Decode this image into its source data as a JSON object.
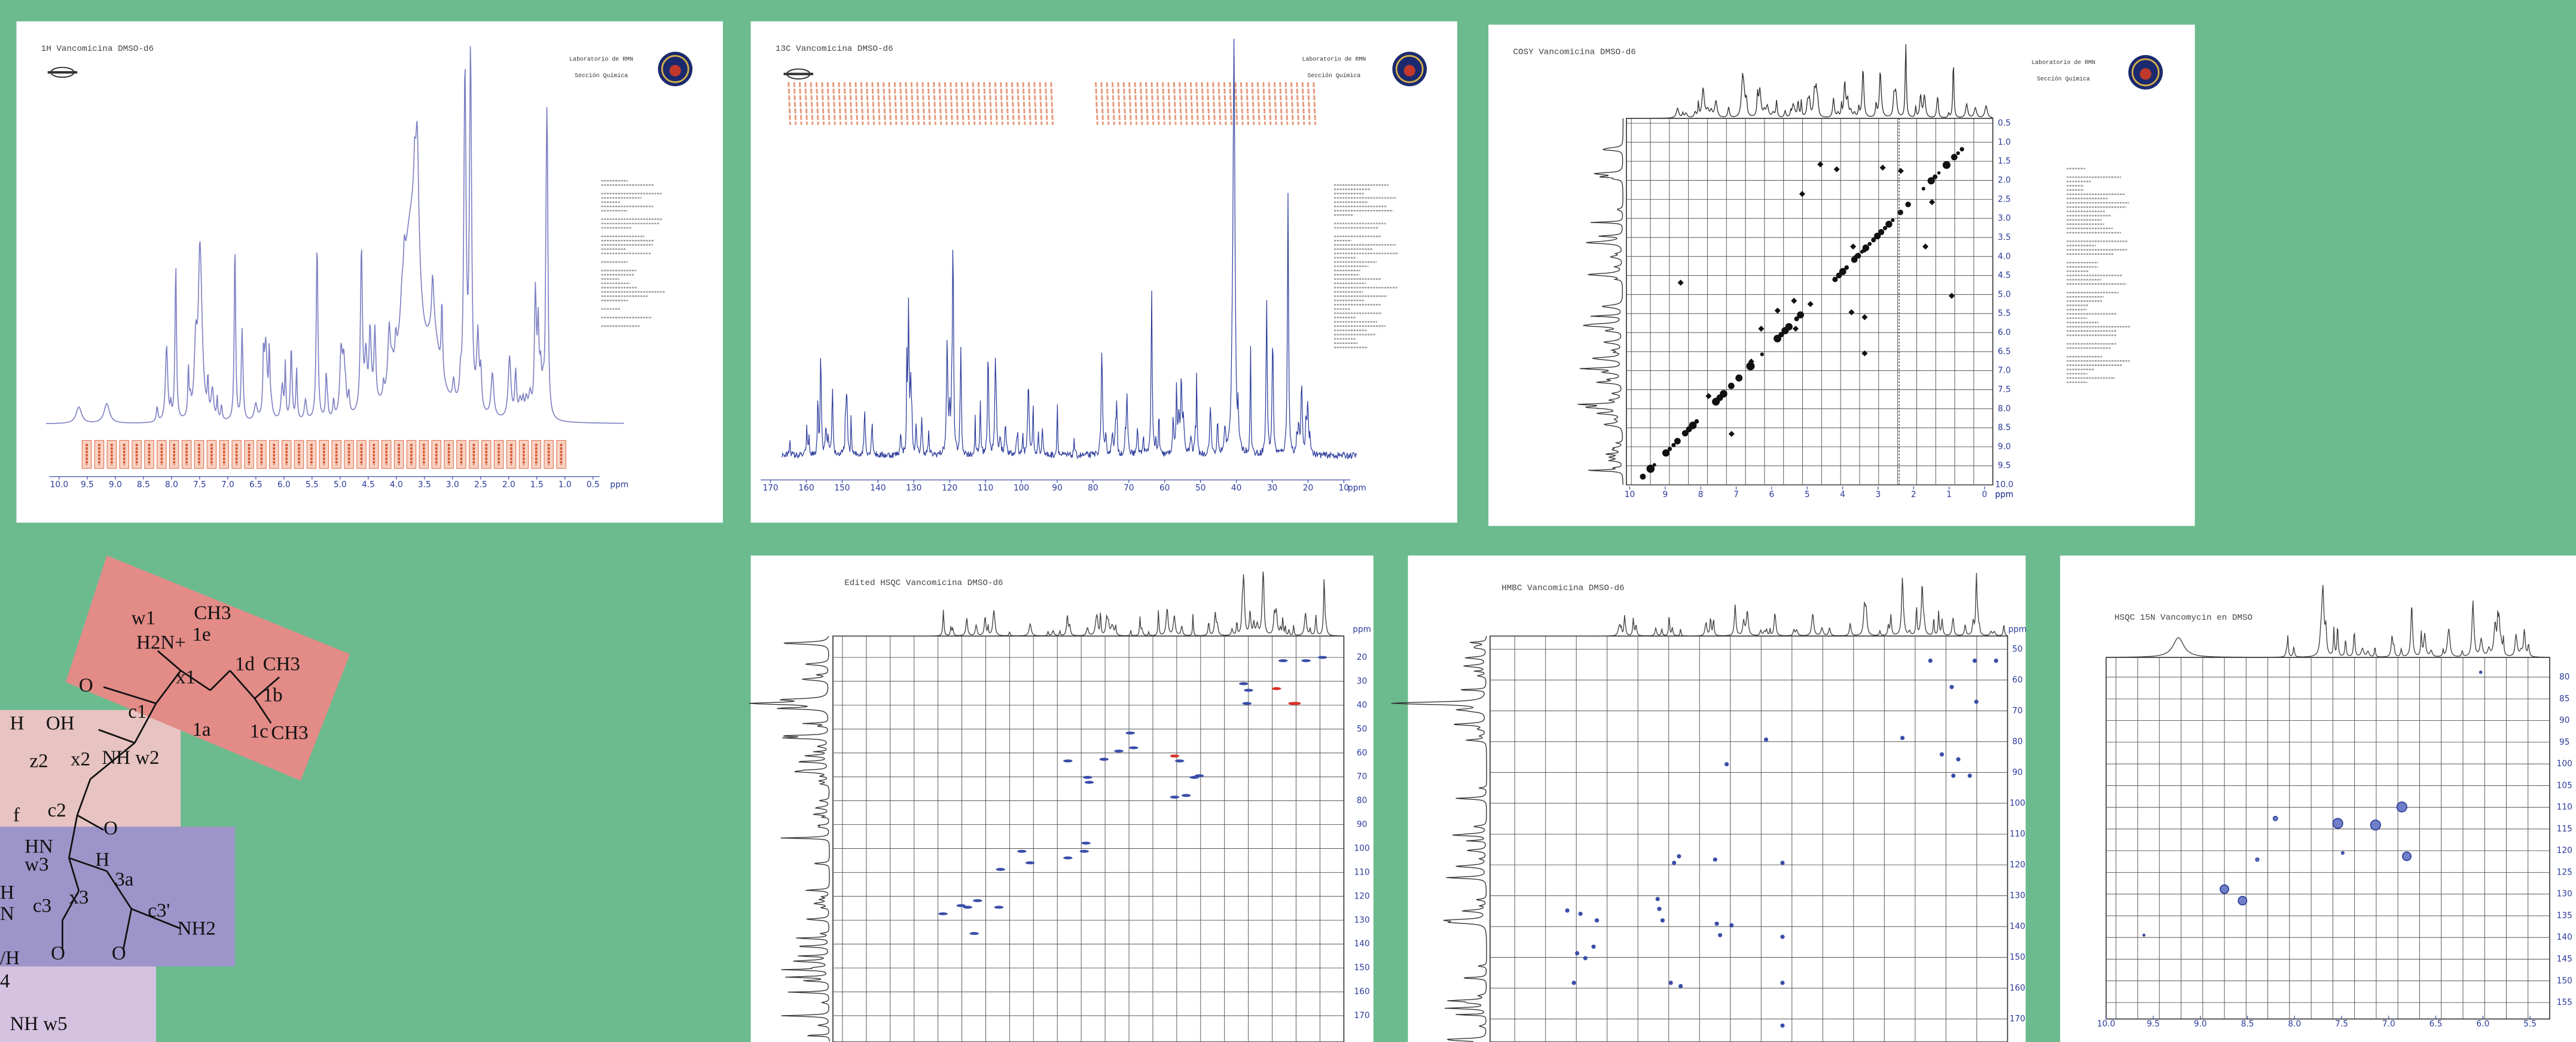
{
  "panels": [
    {
      "title": "1H Vancomicina DMSO-d6",
      "lab": [
        "Laboratorio de RMN",
        "Sección Química"
      ],
      "x_ticks": [
        "10.0",
        "9.5",
        "9.0",
        "8.5",
        "8.0",
        "7.5",
        "7.0",
        "6.5",
        "6.0",
        "5.5",
        "5.0",
        "4.5",
        "4.0",
        "3.5",
        "3.0",
        "2.5",
        "2.0",
        "1.5",
        "1.0",
        "0.5",
        "ppm"
      ]
    },
    {
      "title": "13C Vancomicina DMSO-d6",
      "lab": [
        "Laboratorio de RMN",
        "Sección Química"
      ],
      "x_ticks": [
        "170",
        "160",
        "150",
        "140",
        "130",
        "120",
        "110",
        "100",
        "90",
        "80",
        "70",
        "60",
        "50",
        "40",
        "30",
        "20",
        "10",
        "ppm"
      ]
    },
    {
      "title": "COSY Vancomicina DMSO-d6",
      "lab": [
        "Laboratorio de RMN",
        "Sección Química"
      ],
      "x_ticks": [
        "10",
        "9",
        "8",
        "7",
        "6",
        "5",
        "4",
        "3",
        "2",
        "1",
        "0",
        "ppm"
      ],
      "y_ticks": [
        "0.5",
        "1.0",
        "1.5",
        "2.0",
        "2.5",
        "3.0",
        "3.5",
        "4.0",
        "4.5",
        "5.0",
        "5.5",
        "6.0",
        "6.5",
        "7.0",
        "7.5",
        "8.0",
        "8.5",
        "9.0",
        "9.5",
        "10.0"
      ],
      "y_unit": "ppm"
    },
    {
      "title": "Edited HSQC Vancomicina DMSO-d6",
      "y_ticks": [
        "20",
        "30",
        "40",
        "50",
        "60",
        "70",
        "80",
        "90",
        "100",
        "110",
        "120",
        "130",
        "140",
        "150",
        "160",
        "170"
      ],
      "y_unit": "ppm"
    },
    {
      "title": "HMBC Vancomicina DMSO-d6",
      "y_ticks": [
        "50",
        "60",
        "70",
        "80",
        "90",
        "100",
        "110",
        "120",
        "130",
        "140",
        "150",
        "160",
        "170"
      ],
      "y_unit": "ppm"
    },
    {
      "title": "HSQC 15N Vancomycin en DMSO",
      "x_ticks": [
        "10.0",
        "9.5",
        "9.0",
        "8.5",
        "8.0",
        "7.5",
        "7.0",
        "6.5",
        "6.0",
        "5.5"
      ],
      "y_ticks": [
        "80",
        "85",
        "90",
        "95",
        "100",
        "105",
        "110",
        "115",
        "120",
        "125",
        "130",
        "135",
        "140",
        "145",
        "150",
        "155"
      ]
    }
  ],
  "molecule": {
    "labels": [
      "w1",
      "CH3",
      "1e",
      "H2N+",
      "x1",
      "1d",
      "CH3",
      "1b",
      "O",
      "c1",
      "1a",
      "1c",
      "CH3",
      "H",
      "OH",
      "z2",
      "x2",
      "NH w2",
      "c2",
      "f",
      "O",
      "HN",
      "w3",
      "H",
      "3a",
      "x3",
      "c3'",
      "H",
      "N",
      "c3",
      "NH2",
      "O",
      "O",
      "/H",
      "4",
      "NH w5"
    ]
  }
}
